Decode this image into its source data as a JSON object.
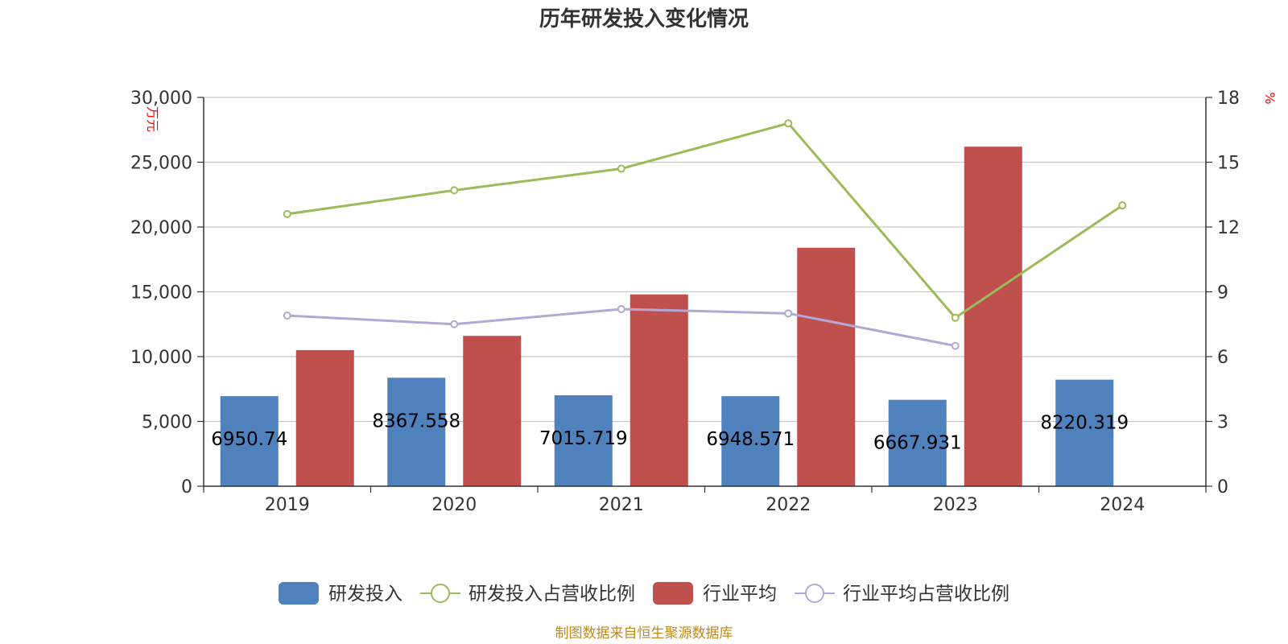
{
  "chart_data": {
    "type": "bar",
    "title": "历年研发投入变化情况",
    "categories": [
      "2019",
      "2020",
      "2021",
      "2022",
      "2023",
      "2024"
    ],
    "y_left": {
      "unit": "万元",
      "ylim": [
        0,
        30000
      ],
      "ticks": [
        "0",
        "5,000",
        "10,000",
        "15,000",
        "20,000",
        "25,000",
        "30,000"
      ]
    },
    "y_right": {
      "unit": "%",
      "ylim": [
        0,
        18
      ],
      "ticks": [
        "0",
        "3",
        "6",
        "9",
        "12",
        "15",
        "18"
      ]
    },
    "series": [
      {
        "name": "研发投入",
        "type": "bar",
        "axis": "left",
        "color": "#4f81bd",
        "values": [
          6950.74,
          8367.558,
          7015.719,
          6948.571,
          6667.931,
          8220.319
        ],
        "labels": [
          "6950.74",
          "8367.558",
          "7015.719",
          "6948.571",
          "6667.931",
          "8220.319"
        ]
      },
      {
        "name": "研发投入占营收比例",
        "type": "line",
        "axis": "right",
        "color": "#9bbb59",
        "values": [
          12.6,
          13.7,
          14.7,
          16.8,
          7.8,
          13.0
        ]
      },
      {
        "name": "行业平均",
        "type": "bar",
        "axis": "left",
        "color": "#c0504d",
        "values": [
          10500,
          11600,
          14800,
          18400,
          26200,
          null
        ]
      },
      {
        "name": "行业平均占营收比例",
        "type": "line",
        "axis": "right",
        "color": "#b4a7d6",
        "values": [
          7.9,
          7.5,
          8.2,
          8.0,
          6.5,
          null
        ]
      }
    ],
    "grid": true,
    "legend_position": "bottom"
  },
  "footer": "制图数据来自恒生聚源数据库"
}
